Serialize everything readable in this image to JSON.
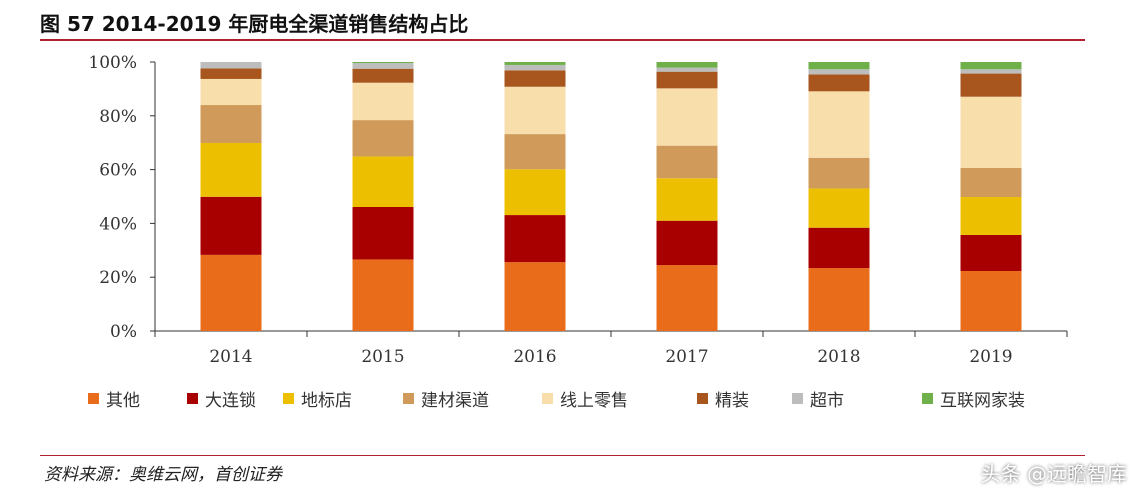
{
  "title": "图 57 2014-2019 年厨电全渠道销售结构占比",
  "source": "资料来源：奥维云网，首创证券",
  "watermark": "头条 @远瞻智库",
  "chart_data": {
    "type": "bar",
    "stacked": true,
    "categories": [
      "2014",
      "2015",
      "2016",
      "2017",
      "2018",
      "2019"
    ],
    "ylim": [
      0,
      100
    ],
    "yticks": [
      "0%",
      "20%",
      "40%",
      "60%",
      "80%",
      "100%"
    ],
    "legend_position": "bottom",
    "grid": false,
    "series": [
      {
        "name": "其他",
        "color": "#e86c1a",
        "values": [
          28.3,
          26.6,
          25.6,
          24.5,
          23.4,
          22.3
        ]
      },
      {
        "name": "大连锁",
        "color": "#a80000",
        "values": [
          21.6,
          19.5,
          17.5,
          16.5,
          15.0,
          13.4
        ]
      },
      {
        "name": "地标店",
        "color": "#ecc000",
        "values": [
          20.0,
          18.8,
          17.0,
          15.8,
          14.6,
          14.1
        ]
      },
      {
        "name": "建材渠道",
        "color": "#d09a5a",
        "values": [
          14.1,
          13.5,
          13.1,
          12.1,
          11.4,
          10.8
        ]
      },
      {
        "name": "线上零售",
        "color": "#f7deaa",
        "values": [
          9.7,
          13.9,
          17.6,
          21.3,
          24.7,
          26.5
        ]
      },
      {
        "name": "精装",
        "color": "#a8561e",
        "values": [
          3.9,
          5.2,
          6.1,
          6.2,
          6.3,
          8.6
        ]
      },
      {
        "name": "超市",
        "color": "#bdbdbd",
        "values": [
          2.4,
          2.1,
          2.0,
          1.5,
          1.9,
          1.6
        ]
      },
      {
        "name": "互联网家装",
        "color": "#6fb04a",
        "values": [
          0,
          0.4,
          1.1,
          2.1,
          2.7,
          2.7
        ]
      }
    ]
  }
}
